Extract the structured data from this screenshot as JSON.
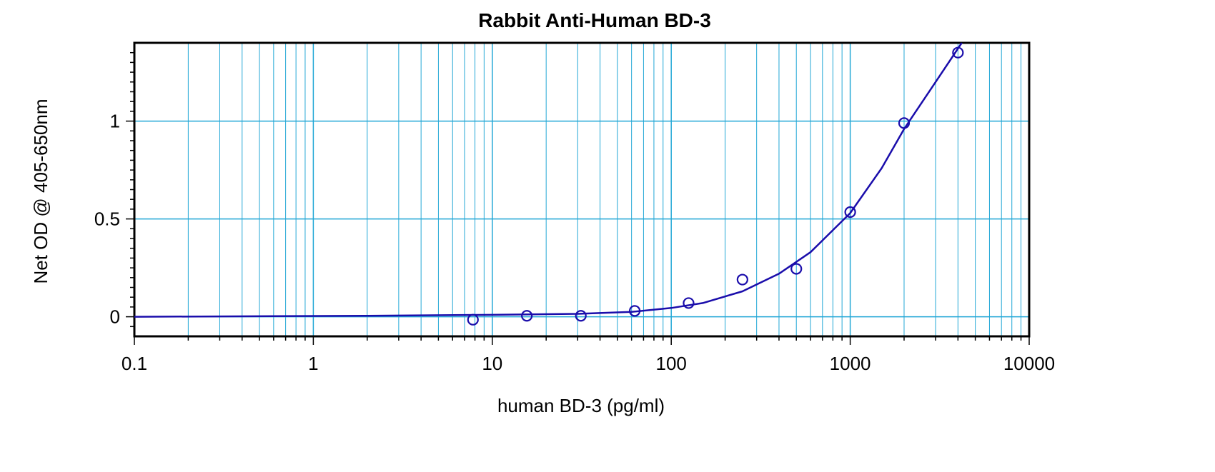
{
  "chart_data": {
    "type": "scatter",
    "title": "Rabbit Anti-Human BD-3",
    "xlabel": "human BD-3 (pg/ml)",
    "ylabel": "Net OD @ 405-650nm",
    "x_scale": "log",
    "xlim": [
      0.1,
      10000
    ],
    "ylim": [
      -0.1,
      1.4
    ],
    "x_ticks": [
      0.1,
      1,
      10,
      100,
      1000,
      10000
    ],
    "x_tick_labels": [
      "0.1",
      "1",
      "10",
      "100",
      "1000",
      "10000"
    ],
    "y_ticks": [
      0,
      0.5,
      1
    ],
    "y_tick_labels": [
      "0",
      "0.5",
      "1"
    ],
    "grid": true,
    "points": {
      "x": [
        7.8,
        15.6,
        31.25,
        62.5,
        125,
        250,
        500,
        1000,
        2000,
        4000
      ],
      "y": [
        -0.015,
        0.005,
        0.005,
        0.03,
        0.07,
        0.19,
        0.245,
        0.535,
        0.99,
        1.35
      ]
    },
    "fit_curve": {
      "x": [
        0.1,
        2,
        10,
        30,
        60,
        100,
        150,
        250,
        400,
        600,
        1000,
        1500,
        2000,
        3000,
        4200
      ],
      "y": [
        0,
        0.005,
        0.01,
        0.015,
        0.025,
        0.045,
        0.07,
        0.13,
        0.22,
        0.33,
        0.53,
        0.76,
        0.96,
        1.2,
        1.4
      ]
    },
    "colors": {
      "series": "#1a0dab",
      "grid": "#22a7d6",
      "frame": "#000000"
    }
  }
}
